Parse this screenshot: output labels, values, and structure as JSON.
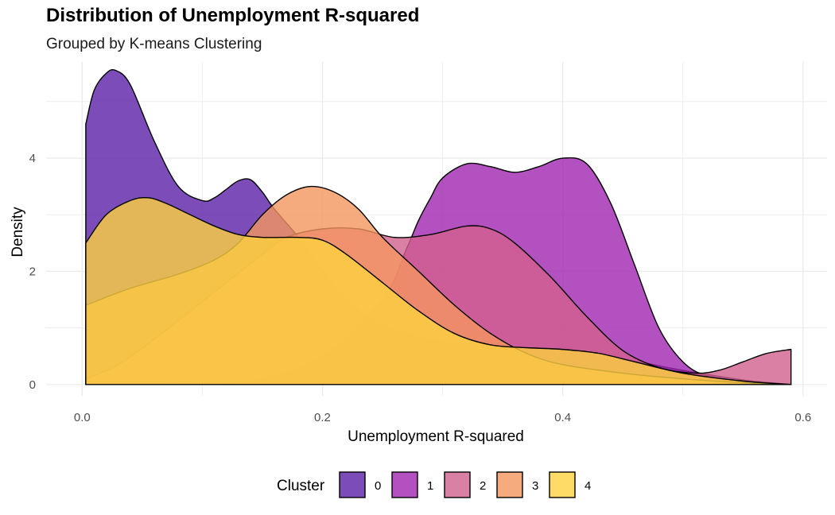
{
  "chart_data": {
    "type": "area",
    "title": "Distribution of Unemployment R-squared",
    "subtitle": "Grouped by K-means Clustering",
    "xlabel": "Unemployment R-squared",
    "ylabel": "Density",
    "xlim": [
      -0.03,
      0.62
    ],
    "ylim": [
      -0.2,
      5.7
    ],
    "xticks": [
      0.0,
      0.2,
      0.4,
      0.6
    ],
    "xtick_labels": [
      "0.0",
      "0.2",
      "0.4",
      "0.6"
    ],
    "yticks": [
      0,
      2,
      4
    ],
    "ytick_labels": [
      "0",
      "2",
      "4"
    ],
    "grid": true,
    "legend": {
      "title": "Cluster",
      "position": "bottom"
    },
    "series": [
      {
        "name": "0",
        "color": "#5b21a8",
        "opacity": 0.8,
        "x": [
          0.003,
          0.01,
          0.02,
          0.028,
          0.04,
          0.06,
          0.08,
          0.1,
          0.11,
          0.12,
          0.13,
          0.14,
          0.15,
          0.16,
          0.18,
          0.2,
          0.22,
          0.25,
          0.3,
          0.33,
          0.36,
          0.4,
          0.45,
          0.5,
          0.55,
          0.59
        ],
        "y": [
          4.6,
          5.2,
          5.5,
          5.55,
          5.3,
          4.3,
          3.5,
          3.25,
          3.3,
          3.45,
          3.6,
          3.62,
          3.4,
          3.1,
          2.6,
          2.0,
          1.5,
          1.05,
          0.75,
          0.7,
          0.65,
          0.6,
          0.45,
          0.25,
          0.08,
          0.0
        ]
      },
      {
        "name": "1",
        "color": "#a125b0",
        "opacity": 0.8,
        "x": [
          0.003,
          0.05,
          0.1,
          0.15,
          0.2,
          0.25,
          0.27,
          0.28,
          0.29,
          0.3,
          0.32,
          0.34,
          0.36,
          0.38,
          0.4,
          0.42,
          0.44,
          0.46,
          0.48,
          0.5,
          0.52,
          0.55,
          0.57,
          0.59
        ],
        "y": [
          0.0,
          0.0,
          0.02,
          0.1,
          0.5,
          1.5,
          2.4,
          2.9,
          3.3,
          3.65,
          3.9,
          3.85,
          3.75,
          3.85,
          4.0,
          3.9,
          3.2,
          2.1,
          1.0,
          0.4,
          0.15,
          0.05,
          0.02,
          0.0
        ]
      },
      {
        "name": "2",
        "color": "#d2608f",
        "opacity": 0.8,
        "x": [
          0.003,
          0.03,
          0.06,
          0.09,
          0.12,
          0.15,
          0.17,
          0.2,
          0.23,
          0.26,
          0.29,
          0.32,
          0.34,
          0.36,
          0.39,
          0.42,
          0.45,
          0.48,
          0.51,
          0.53,
          0.55,
          0.57,
          0.59
        ],
        "y": [
          0.1,
          0.35,
          0.8,
          1.3,
          1.8,
          2.3,
          2.6,
          2.75,
          2.75,
          2.6,
          2.65,
          2.8,
          2.75,
          2.5,
          1.9,
          1.2,
          0.6,
          0.3,
          0.2,
          0.25,
          0.4,
          0.55,
          0.62
        ]
      },
      {
        "name": "3",
        "color": "#f4965f",
        "opacity": 0.8,
        "x": [
          0.003,
          0.04,
          0.08,
          0.11,
          0.13,
          0.15,
          0.17,
          0.19,
          0.21,
          0.23,
          0.25,
          0.28,
          0.31,
          0.34,
          0.37,
          0.4,
          0.45,
          0.5,
          0.55,
          0.59
        ],
        "y": [
          1.4,
          1.7,
          1.95,
          2.2,
          2.5,
          3.0,
          3.35,
          3.5,
          3.4,
          3.1,
          2.6,
          2.0,
          1.4,
          0.9,
          0.55,
          0.35,
          0.2,
          0.1,
          0.03,
          0.0
        ]
      },
      {
        "name": "4",
        "color": "#fdd240",
        "opacity": 0.8,
        "x": [
          0.003,
          0.02,
          0.04,
          0.055,
          0.07,
          0.09,
          0.11,
          0.13,
          0.15,
          0.18,
          0.2,
          0.22,
          0.25,
          0.28,
          0.31,
          0.34,
          0.37,
          0.4,
          0.43,
          0.46,
          0.5,
          0.55,
          0.59
        ],
        "y": [
          2.5,
          3.0,
          3.25,
          3.3,
          3.2,
          3.0,
          2.8,
          2.65,
          2.6,
          2.6,
          2.55,
          2.3,
          1.8,
          1.3,
          0.9,
          0.7,
          0.65,
          0.62,
          0.55,
          0.4,
          0.2,
          0.06,
          0.0
        ]
      }
    ]
  }
}
